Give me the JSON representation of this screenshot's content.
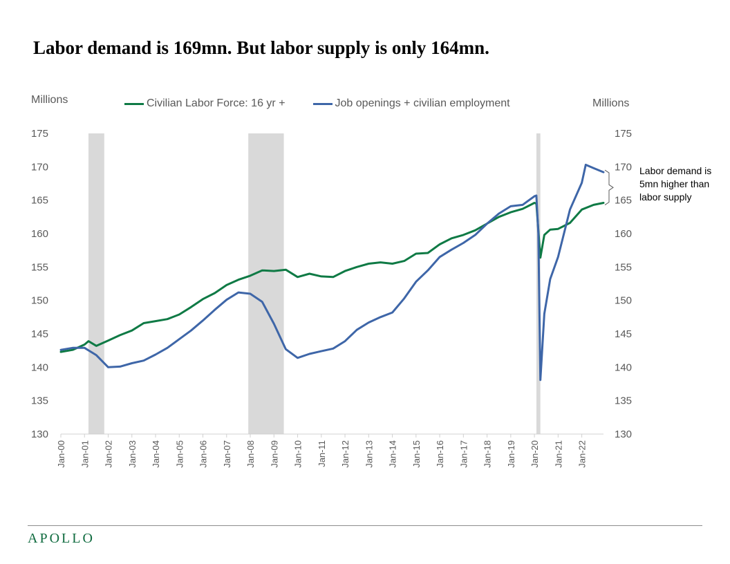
{
  "title": "Labor demand is 169mn. But labor supply is only 164mn.",
  "units_left": "Millions",
  "units_right": "Millions",
  "annotation": "Labor demand  is 5mn higher than labor supply",
  "logo": "APOLLO",
  "colors": {
    "supply": "#0f7a45",
    "demand": "#3e66a8",
    "recession": "#d9d9d9",
    "logo": "#0f6b3f"
  },
  "chart_data": {
    "type": "line",
    "title": "Labor demand is 169mn. But labor supply is only 164mn.",
    "ylabel_left": "Millions",
    "ylabel_right": "Millions",
    "ylim": [
      130,
      175
    ],
    "y_ticks": [
      130,
      135,
      140,
      145,
      150,
      155,
      160,
      165,
      170,
      175
    ],
    "x_ticks": [
      "Jan-00",
      "Jan-01",
      "Jan-02",
      "Jan-03",
      "Jan-04",
      "Jan-05",
      "Jan-06",
      "Jan-07",
      "Jan-08",
      "Jan-09",
      "Jan-10",
      "Jan-11",
      "Jan-12",
      "Jan-13",
      "Jan-14",
      "Jan-15",
      "Jan-16",
      "Jan-17",
      "Jan-18",
      "Jan-19",
      "Jan-20",
      "Jan-21",
      "Jan-22"
    ],
    "xlim": [
      "2000-01",
      "2022-12"
    ],
    "legend_position": "top",
    "recessions": [
      [
        "2001-03",
        "2001-11"
      ],
      [
        "2007-12",
        "2009-06"
      ],
      [
        "2020-02",
        "2020-04"
      ]
    ],
    "series": [
      {
        "name": "Civilian Labor Force: 16 yr +",
        "color": "#0f7a45",
        "points": [
          [
            "2000-01",
            142.3
          ],
          [
            "2000-07",
            142.6
          ],
          [
            "2001-01",
            143.4
          ],
          [
            "2001-03",
            143.9
          ],
          [
            "2001-07",
            143.2
          ],
          [
            "2002-01",
            144.0
          ],
          [
            "2002-07",
            144.8
          ],
          [
            "2003-01",
            145.5
          ],
          [
            "2003-07",
            146.6
          ],
          [
            "2004-01",
            146.9
          ],
          [
            "2004-07",
            147.2
          ],
          [
            "2005-01",
            147.9
          ],
          [
            "2005-07",
            149.0
          ],
          [
            "2006-01",
            150.2
          ],
          [
            "2006-07",
            151.1
          ],
          [
            "2007-01",
            152.3
          ],
          [
            "2007-07",
            153.1
          ],
          [
            "2008-01",
            153.7
          ],
          [
            "2008-07",
            154.5
          ],
          [
            "2009-01",
            154.4
          ],
          [
            "2009-07",
            154.6
          ],
          [
            "2010-01",
            153.5
          ],
          [
            "2010-07",
            154.0
          ],
          [
            "2011-01",
            153.6
          ],
          [
            "2011-07",
            153.5
          ],
          [
            "2012-01",
            154.4
          ],
          [
            "2012-07",
            155.0
          ],
          [
            "2013-01",
            155.5
          ],
          [
            "2013-07",
            155.7
          ],
          [
            "2014-01",
            155.5
          ],
          [
            "2014-07",
            155.9
          ],
          [
            "2015-01",
            157.0
          ],
          [
            "2015-07",
            157.1
          ],
          [
            "2016-01",
            158.4
          ],
          [
            "2016-07",
            159.3
          ],
          [
            "2017-01",
            159.8
          ],
          [
            "2017-07",
            160.5
          ],
          [
            "2018-01",
            161.5
          ],
          [
            "2018-07",
            162.5
          ],
          [
            "2019-01",
            163.2
          ],
          [
            "2019-07",
            163.7
          ],
          [
            "2020-01",
            164.6
          ],
          [
            "2020-02",
            164.5
          ],
          [
            "2020-04",
            156.4
          ],
          [
            "2020-06",
            159.8
          ],
          [
            "2020-09",
            160.6
          ],
          [
            "2021-01",
            160.7
          ],
          [
            "2021-07",
            161.6
          ],
          [
            "2022-01",
            163.6
          ],
          [
            "2022-07",
            164.3
          ],
          [
            "2022-12",
            164.6
          ]
        ]
      },
      {
        "name": "Job openings + civilian employment",
        "color": "#3e66a8",
        "points": [
          [
            "2000-01",
            142.6
          ],
          [
            "2000-07",
            142.9
          ],
          [
            "2001-01",
            142.9
          ],
          [
            "2001-07",
            141.8
          ],
          [
            "2002-01",
            140.0
          ],
          [
            "2002-07",
            140.1
          ],
          [
            "2003-01",
            140.6
          ],
          [
            "2003-07",
            141.0
          ],
          [
            "2004-01",
            141.9
          ],
          [
            "2004-07",
            142.9
          ],
          [
            "2005-01",
            144.2
          ],
          [
            "2005-07",
            145.5
          ],
          [
            "2006-01",
            147.0
          ],
          [
            "2006-07",
            148.6
          ],
          [
            "2007-01",
            150.1
          ],
          [
            "2007-07",
            151.2
          ],
          [
            "2008-01",
            151.0
          ],
          [
            "2008-07",
            149.8
          ],
          [
            "2009-01",
            146.5
          ],
          [
            "2009-07",
            142.7
          ],
          [
            "2010-01",
            141.4
          ],
          [
            "2010-07",
            142.0
          ],
          [
            "2011-01",
            142.4
          ],
          [
            "2011-07",
            142.8
          ],
          [
            "2012-01",
            143.9
          ],
          [
            "2012-07",
            145.6
          ],
          [
            "2013-01",
            146.7
          ],
          [
            "2013-07",
            147.5
          ],
          [
            "2014-01",
            148.2
          ],
          [
            "2014-07",
            150.3
          ],
          [
            "2015-01",
            152.8
          ],
          [
            "2015-07",
            154.5
          ],
          [
            "2016-01",
            156.5
          ],
          [
            "2016-07",
            157.6
          ],
          [
            "2017-01",
            158.6
          ],
          [
            "2017-07",
            159.8
          ],
          [
            "2018-01",
            161.5
          ],
          [
            "2018-07",
            163.0
          ],
          [
            "2019-01",
            164.1
          ],
          [
            "2019-07",
            164.3
          ],
          [
            "2020-01",
            165.6
          ],
          [
            "2020-02",
            165.7
          ],
          [
            "2020-03",
            160.0
          ],
          [
            "2020-04",
            138.1
          ],
          [
            "2020-06",
            148.0
          ],
          [
            "2020-09",
            153.2
          ],
          [
            "2021-01",
            156.5
          ],
          [
            "2021-07",
            163.6
          ],
          [
            "2022-01",
            167.6
          ],
          [
            "2022-03",
            170.3
          ],
          [
            "2022-07",
            169.8
          ],
          [
            "2022-12",
            169.2
          ]
        ]
      }
    ]
  }
}
